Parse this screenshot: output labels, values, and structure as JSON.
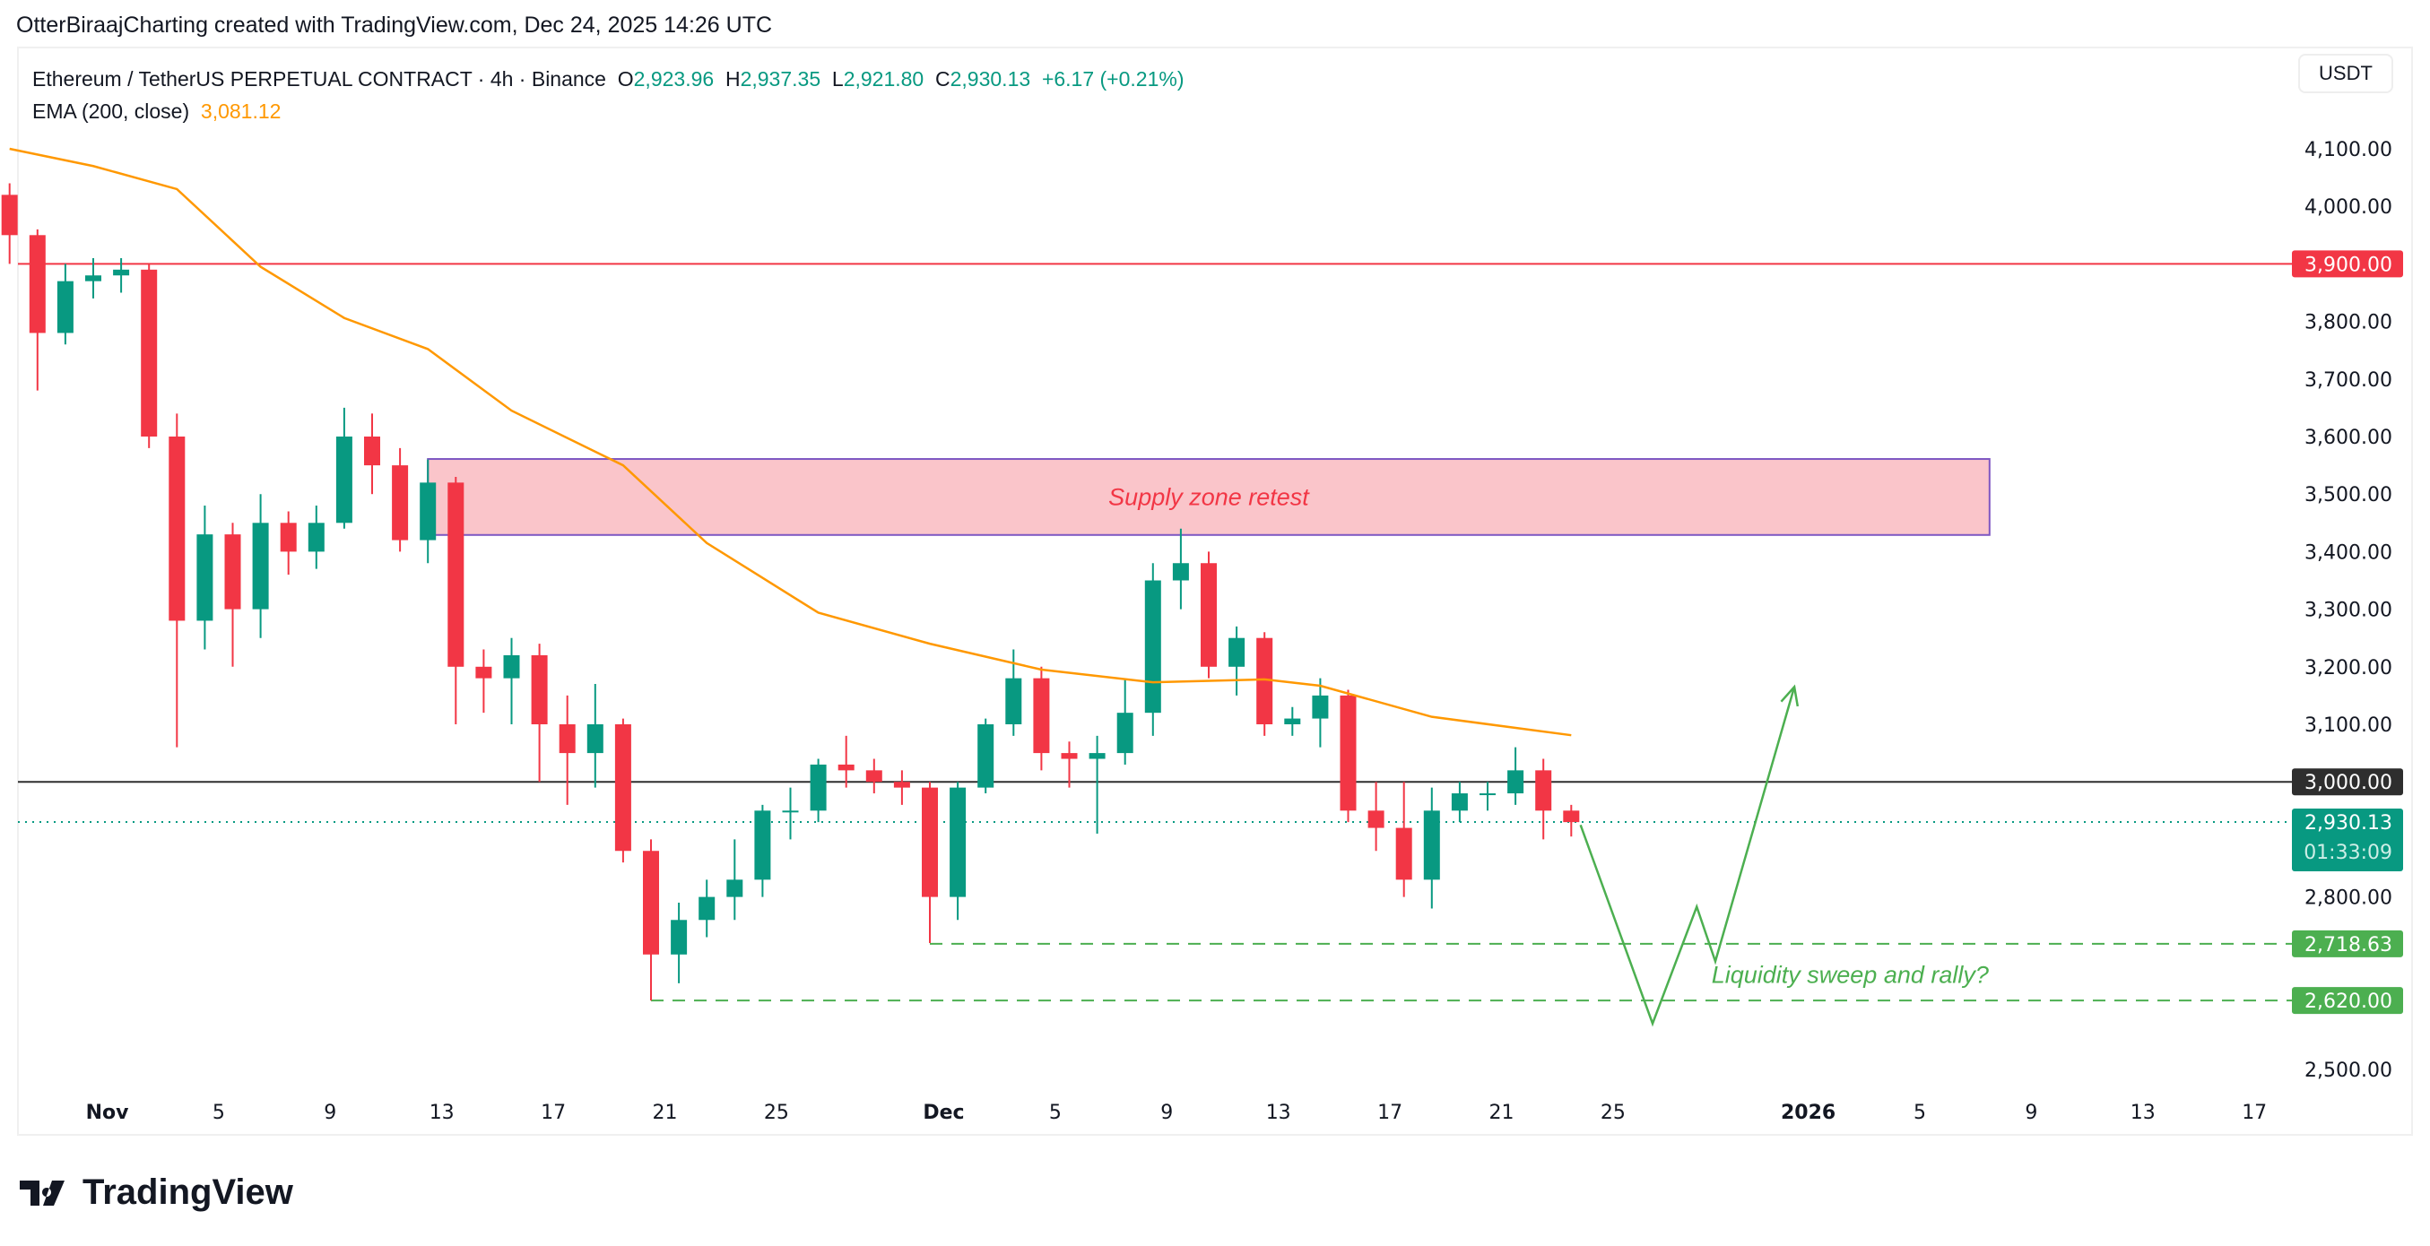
{
  "credit": "OtterBiraajCharting created with TradingView.com, Dec 24, 2025 14:26 UTC",
  "legend": {
    "symbol": "Ethereum / TetherUS PERPETUAL CONTRACT · 4h · Binance",
    "o_label": "O",
    "o": "2,923.96",
    "h_label": "H",
    "h": "2,937.35",
    "l_label": "L",
    "l": "2,921.80",
    "c_label": "C",
    "c": "2,930.13",
    "change": "+6.17 (+0.21%)",
    "ema_label": "EMA (200, close)",
    "ema_value": "3,081.12"
  },
  "currency_button": "USDT",
  "logo_text": "TradingView",
  "colors": {
    "up": "#089981",
    "down": "#F23645",
    "ema": "#FF9800",
    "resistance": "#F23645",
    "level": "#2E2E2E",
    "support": "#4CAF50",
    "zone_fill": "#FAC5CA",
    "zone_border": "#7E57C2"
  },
  "chart_data": {
    "type": "candlestick",
    "ylim": [
      2450,
      4150
    ],
    "y_ticks": [
      "4,100.00",
      "4,000.00",
      "3,800.00",
      "3,700.00",
      "3,600.00",
      "3,500.00",
      "3,400.00",
      "3,300.00",
      "3,200.00",
      "3,100.00",
      "2,800.00",
      "2,500.00"
    ],
    "y_tick_values": [
      4100,
      4000,
      3800,
      3700,
      3600,
      3500,
      3400,
      3300,
      3200,
      3100,
      2800,
      2500
    ],
    "x_ticks": [
      {
        "d": "2025-11-01",
        "label": "Nov"
      },
      {
        "d": "2025-11-05",
        "label": "5"
      },
      {
        "d": "2025-11-09",
        "label": "9"
      },
      {
        "d": "2025-11-13",
        "label": "13"
      },
      {
        "d": "2025-11-17",
        "label": "17"
      },
      {
        "d": "2025-11-21",
        "label": "21"
      },
      {
        "d": "2025-11-25",
        "label": "25"
      },
      {
        "d": "2025-12-01",
        "label": "Dec"
      },
      {
        "d": "2025-12-05",
        "label": "5"
      },
      {
        "d": "2025-12-09",
        "label": "9"
      },
      {
        "d": "2025-12-13",
        "label": "13"
      },
      {
        "d": "2025-12-17",
        "label": "17"
      },
      {
        "d": "2025-12-21",
        "label": "21"
      },
      {
        "d": "2025-12-25",
        "label": "25"
      },
      {
        "d": "2026-01-01",
        "label": "2026"
      },
      {
        "d": "2026-01-05",
        "label": "5"
      },
      {
        "d": "2026-01-09",
        "label": "9"
      },
      {
        "d": "2026-01-13",
        "label": "13"
      },
      {
        "d": "2026-01-17",
        "label": "17"
      }
    ],
    "candles_columns": [
      "date",
      "open",
      "high",
      "low",
      "close"
    ],
    "candles": [
      [
        "2025-10-29",
        4020,
        4040,
        3900,
        3950
      ],
      [
        "2025-10-30",
        3950,
        3960,
        3680,
        3780
      ],
      [
        "2025-10-31",
        3780,
        3900,
        3760,
        3870
      ],
      [
        "2025-11-01",
        3870,
        3910,
        3840,
        3880
      ],
      [
        "2025-11-02",
        3880,
        3910,
        3850,
        3890
      ],
      [
        "2025-11-03",
        3890,
        3900,
        3580,
        3600
      ],
      [
        "2025-11-04",
        3600,
        3640,
        3060,
        3280
      ],
      [
        "2025-11-05",
        3280,
        3480,
        3230,
        3430
      ],
      [
        "2025-11-06",
        3430,
        3450,
        3200,
        3300
      ],
      [
        "2025-11-07",
        3300,
        3500,
        3250,
        3450
      ],
      [
        "2025-11-08",
        3450,
        3470,
        3360,
        3400
      ],
      [
        "2025-11-09",
        3400,
        3480,
        3370,
        3450
      ],
      [
        "2025-11-10",
        3450,
        3650,
        3440,
        3600
      ],
      [
        "2025-11-11",
        3600,
        3640,
        3500,
        3550
      ],
      [
        "2025-11-12",
        3550,
        3580,
        3400,
        3420
      ],
      [
        "2025-11-13",
        3420,
        3560,
        3380,
        3520
      ],
      [
        "2025-11-14",
        3520,
        3530,
        3100,
        3200
      ],
      [
        "2025-11-15",
        3200,
        3230,
        3120,
        3180
      ],
      [
        "2025-11-16",
        3180,
        3250,
        3100,
        3220
      ],
      [
        "2025-11-17",
        3220,
        3240,
        3000,
        3100
      ],
      [
        "2025-11-18",
        3100,
        3150,
        2960,
        3050
      ],
      [
        "2025-11-19",
        3050,
        3170,
        2990,
        3100
      ],
      [
        "2025-11-20",
        3100,
        3110,
        2860,
        2880
      ],
      [
        "2025-11-21",
        2880,
        2900,
        2620,
        2700
      ],
      [
        "2025-11-22",
        2700,
        2790,
        2650,
        2760
      ],
      [
        "2025-11-23",
        2760,
        2830,
        2730,
        2800
      ],
      [
        "2025-11-24",
        2800,
        2900,
        2760,
        2830
      ],
      [
        "2025-11-25",
        2830,
        2960,
        2800,
        2950
      ],
      [
        "2025-11-26",
        2950,
        2990,
        2900,
        2950
      ],
      [
        "2025-11-27",
        2950,
        3040,
        2930,
        3030
      ],
      [
        "2025-11-28",
        3030,
        3080,
        2990,
        3020
      ],
      [
        "2025-11-29",
        3020,
        3040,
        2980,
        3000
      ],
      [
        "2025-11-30",
        3000,
        3020,
        2960,
        2990
      ],
      [
        "2025-12-01",
        2990,
        3000,
        2720,
        2800
      ],
      [
        "2025-12-02",
        2800,
        3000,
        2760,
        2990
      ],
      [
        "2025-12-03",
        2990,
        3110,
        2980,
        3100
      ],
      [
        "2025-12-04",
        3100,
        3230,
        3080,
        3180
      ],
      [
        "2025-12-05",
        3180,
        3200,
        3020,
        3050
      ],
      [
        "2025-12-06",
        3050,
        3070,
        2990,
        3040
      ],
      [
        "2025-12-07",
        3040,
        3080,
        2910,
        3050
      ],
      [
        "2025-12-08",
        3050,
        3180,
        3030,
        3120
      ],
      [
        "2025-12-09",
        3120,
        3380,
        3080,
        3350
      ],
      [
        "2025-12-10",
        3350,
        3440,
        3300,
        3380
      ],
      [
        "2025-12-11",
        3380,
        3400,
        3180,
        3200
      ],
      [
        "2025-12-12",
        3200,
        3270,
        3150,
        3250
      ],
      [
        "2025-12-13",
        3250,
        3260,
        3080,
        3100
      ],
      [
        "2025-12-14",
        3100,
        3130,
        3080,
        3110
      ],
      [
        "2025-12-15",
        3110,
        3180,
        3060,
        3150
      ],
      [
        "2025-12-16",
        3150,
        3160,
        2930,
        2950
      ],
      [
        "2025-12-17",
        2950,
        3000,
        2880,
        2920
      ],
      [
        "2025-12-18",
        2920,
        3000,
        2800,
        2830
      ],
      [
        "2025-12-19",
        2830,
        2990,
        2780,
        2950
      ],
      [
        "2025-12-20",
        2950,
        3000,
        2930,
        2980
      ],
      [
        "2025-12-21",
        2980,
        3000,
        2950,
        2980
      ],
      [
        "2025-12-22",
        2980,
        3060,
        2960,
        3020
      ],
      [
        "2025-12-23",
        3020,
        3040,
        2900,
        2950
      ],
      [
        "2025-12-24",
        2950,
        2960,
        2905,
        2930
      ]
    ],
    "ema": {
      "name": "EMA (200, close)",
      "points": [
        [
          "2025-10-29",
          4100
        ],
        [
          "2025-11-01",
          4070
        ],
        [
          "2025-11-04",
          4030
        ],
        [
          "2025-11-07",
          3895
        ],
        [
          "2025-11-10",
          3806
        ],
        [
          "2025-11-13",
          3752
        ],
        [
          "2025-11-16",
          3645
        ],
        [
          "2025-11-20",
          3550
        ],
        [
          "2025-11-23",
          3415
        ],
        [
          "2025-11-27",
          3294
        ],
        [
          "2025-12-01",
          3240
        ],
        [
          "2025-12-05",
          3195
        ],
        [
          "2025-12-09",
          3173
        ],
        [
          "2025-12-13",
          3178
        ],
        [
          "2025-12-15",
          3167
        ],
        [
          "2025-12-19",
          3113
        ],
        [
          "2025-12-24",
          3081
        ]
      ]
    },
    "horizontal_levels": [
      {
        "price": 3900,
        "label": "3,900.00",
        "style": "solid",
        "color": "#F23645",
        "from": "2025-10-29"
      },
      {
        "price": 3000,
        "label": "3,000.00",
        "style": "solid",
        "color": "#2E2E2E",
        "from": "2025-10-29"
      },
      {
        "price": 2930.13,
        "label": "2,930.13",
        "sublabel": "01:33:09",
        "style": "dotted",
        "color": "#089981",
        "from": "2025-10-29"
      },
      {
        "price": 2718.63,
        "label": "2,718.63",
        "style": "dashed",
        "color": "#4CAF50",
        "from": "2025-12-01"
      },
      {
        "price": 2620,
        "label": "2,620.00",
        "style": "dashed",
        "color": "#4CAF50",
        "from": "2025-11-21"
      }
    ],
    "zone": {
      "label": "Supply zone retest",
      "from": "2025-11-13",
      "to": "2026-01-08",
      "top": 3561,
      "bottom": 3429
    },
    "projection": {
      "label": "Liquidity sweep and rally?",
      "points": [
        [
          "2025-12-24T20:00",
          2925
        ],
        [
          "2025-12-27T10:00",
          2580
        ],
        [
          "2025-12-29T00:00",
          2783
        ],
        [
          "2025-12-29T16:00",
          2688
        ],
        [
          "2026-01-01T12:00",
          3165
        ]
      ]
    }
  }
}
